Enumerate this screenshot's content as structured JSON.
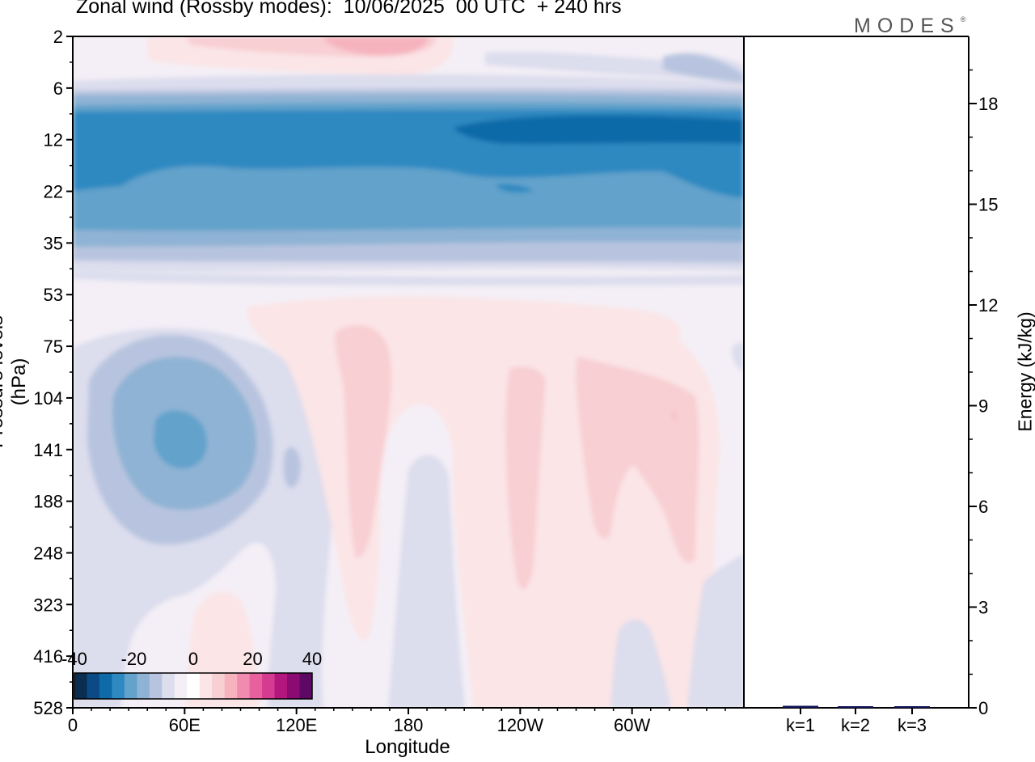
{
  "title": "Zonal wind (Rossby modes):  10/06/2025  00 UTC  + 240 hrs",
  "logo": "MODES",
  "logo_mark": "®",
  "chart_data": [
    {
      "type": "heatmap",
      "title": "Zonal wind (Rossby modes):  10/06/2025  00 UTC  + 240 hrs",
      "xlabel": "Longitude",
      "ylabel": "Pressure levels (hPa)",
      "x_ticks": [
        "0",
        "60E",
        "120E",
        "180",
        "120W",
        "60W"
      ],
      "y_ticks": [
        "2",
        "6",
        "12",
        "22",
        "35",
        "53",
        "75",
        "104",
        "141",
        "188",
        "248",
        "323",
        "416",
        "528"
      ],
      "colorbar": {
        "ticks": [
          "-40",
          "-20",
          "0",
          "20",
          "40"
        ],
        "range": [
          -40,
          40
        ],
        "colors": [
          "#0b2d4f",
          "#0b4a85",
          "#0f6ba8",
          "#2f89c1",
          "#62a2cb",
          "#8fb3d4",
          "#b8c4df",
          "#dcdded",
          "#f4eff6",
          "#ffffff",
          "#fbe5e6",
          "#f8cfd3",
          "#f6b3be",
          "#f28bb0",
          "#e9609e",
          "#d53b90",
          "#b3167c",
          "#8b0b72",
          "#5e0866"
        ]
      },
      "features": [
        {
          "name": "stratospheric easterly band",
          "lon_range": [
            0,
            360
          ],
          "p_range": [
            7,
            30
          ],
          "min_value": -32
        },
        {
          "name": "upper westerly patch",
          "lon_range": [
            40,
            180
          ],
          "p_range": [
            2,
            5
          ],
          "max_value": 12
        },
        {
          "name": "low-level easterly core",
          "lon_center": 57,
          "p_center": 135,
          "min_value": -18
        },
        {
          "name": "tropospheric westerly plumes",
          "lon_range": [
            150,
            330
          ],
          "p_range": [
            55,
            350
          ],
          "max_value": 8
        }
      ]
    },
    {
      "type": "bar",
      "ylabel": "Energy (kJ/kg)",
      "categories": [
        "k=1",
        "k=2",
        "k=3"
      ],
      "values": [
        0.06,
        0.03,
        0.02
      ],
      "ylim": [
        0,
        20
      ],
      "y_ticks": [
        "0",
        "3",
        "6",
        "9",
        "12",
        "15",
        "18"
      ]
    }
  ]
}
